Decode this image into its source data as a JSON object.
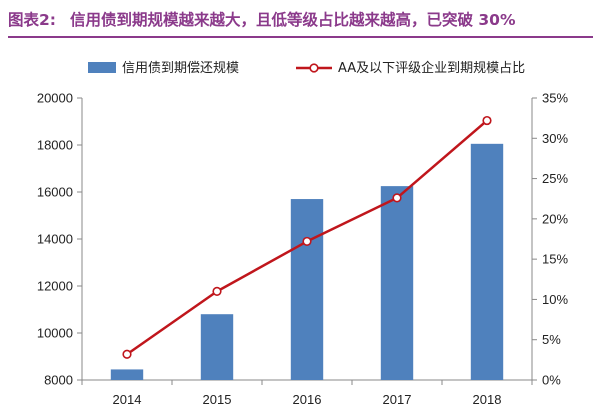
{
  "header": {
    "prefix": "图表2:",
    "title": "信用债到期规模越来越大，且低等级占比越来越高，已突破 30%"
  },
  "colors": {
    "header": "#8b3a8b",
    "bar": "#4f81bd",
    "line": "#c0161c",
    "axis": "#888888"
  },
  "chart_data": {
    "type": "bar",
    "categories": [
      "2014",
      "2015",
      "2016",
      "2017",
      "2018"
    ],
    "series": [
      {
        "name": "信用债到期偿还规模",
        "type": "bar",
        "axis": "left",
        "values": [
          8450,
          10800,
          15700,
          16250,
          18050
        ]
      },
      {
        "name": "AA及以下评级企业到期规模占比",
        "type": "line",
        "axis": "right",
        "values": [
          3.2,
          11.0,
          17.2,
          22.6,
          32.2
        ]
      }
    ],
    "ylim": [
      8000,
      20000
    ],
    "yticks": [
      "8000",
      "10000",
      "12000",
      "14000",
      "16000",
      "18000",
      "20000"
    ],
    "y2lim": [
      0,
      35
    ],
    "y2ticks": [
      "0%",
      "5%",
      "10%",
      "15%",
      "20%",
      "25%",
      "30%",
      "35%"
    ],
    "legend": "top",
    "grid": false
  }
}
